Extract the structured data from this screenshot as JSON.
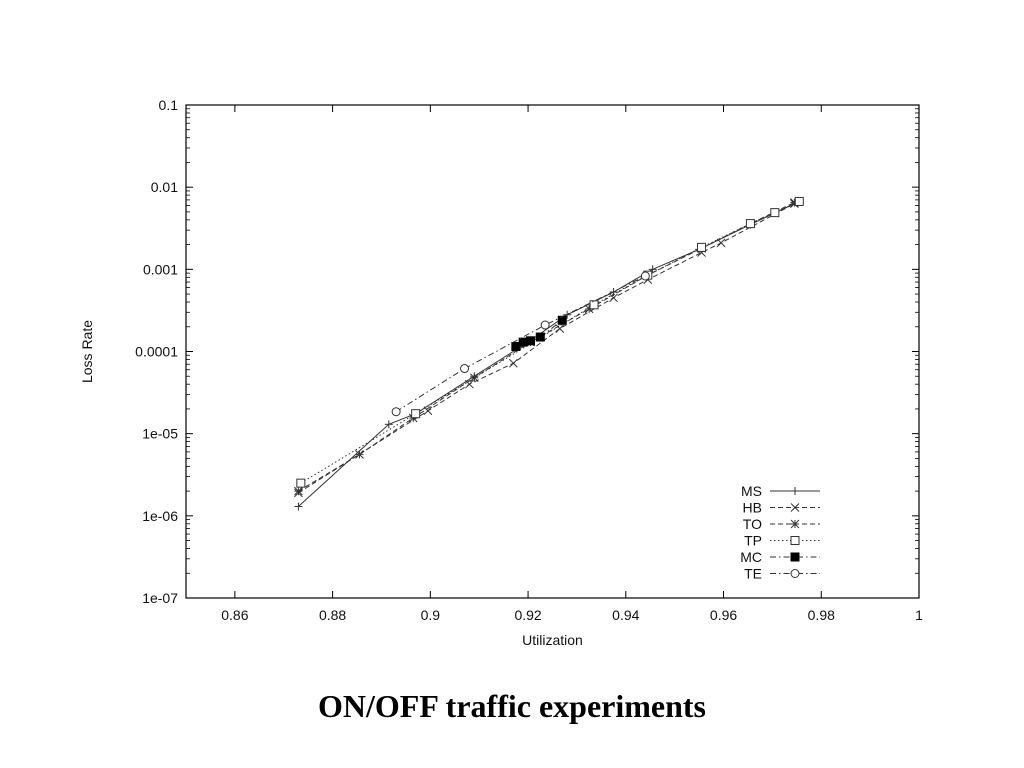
{
  "caption": "ON/OFF traffic experiments",
  "chart_data": {
    "type": "line",
    "title": "",
    "xlabel": "Utilization",
    "ylabel": "Loss Rate",
    "xlim": [
      0.85,
      1.0
    ],
    "ylim": [
      1e-07,
      0.1
    ],
    "yscale": "log",
    "xticks": [
      0.86,
      0.88,
      0.9,
      0.92,
      0.94,
      0.96,
      0.98,
      1.0
    ],
    "xtick_labels": [
      "0.86",
      "0.88",
      "0.9",
      "0.92",
      "0.94",
      "0.96",
      "0.98",
      "1"
    ],
    "yticks": [
      1e-07,
      1e-06,
      1e-05,
      0.0001,
      0.001,
      0.01,
      0.1
    ],
    "ytick_labels": [
      "1e-07",
      "1e-06",
      "1e-05",
      "0.0001",
      "0.001",
      "0.01",
      "0.1"
    ],
    "grid": false,
    "legend_position": "bottom-right",
    "colors": {
      "axis": "#000000",
      "series": "#333333"
    },
    "series": [
      {
        "name": "MS",
        "marker": "plus",
        "dash": "solid",
        "points": [
          [
            0.873,
            1.3e-06
          ],
          [
            0.8915,
            1.3e-05
          ],
          [
            0.897,
            1.75e-05
          ],
          [
            0.909,
            5e-05
          ],
          [
            0.92,
            0.00013
          ],
          [
            0.928,
            0.00028
          ],
          [
            0.9375,
            0.00053
          ],
          [
            0.9455,
            0.001
          ],
          [
            0.955,
            0.00175
          ],
          [
            0.9655,
            0.0035
          ],
          [
            0.975,
            0.0065
          ]
        ]
      },
      {
        "name": "HB",
        "marker": "x",
        "dash": "dashed",
        "points": [
          [
            0.873,
            1.9e-06
          ],
          [
            0.8995,
            1.9e-05
          ],
          [
            0.908,
            4e-05
          ],
          [
            0.917,
            7.2e-05
          ],
          [
            0.9265,
            0.00019
          ],
          [
            0.9375,
            0.00045
          ],
          [
            0.9445,
            0.00075
          ],
          [
            0.9555,
            0.0016
          ],
          [
            0.9595,
            0.0021
          ],
          [
            0.9745,
            0.0063
          ]
        ]
      },
      {
        "name": "TO",
        "marker": "star",
        "dash": "dashed",
        "points": [
          [
            0.873,
            2e-06
          ],
          [
            0.8855,
            5.6e-06
          ],
          [
            0.8965,
            1.55e-05
          ],
          [
            0.909,
            4.8e-05
          ],
          [
            0.9205,
            0.00013
          ],
          [
            0.9325,
            0.00033
          ],
          [
            0.9445,
            0.00085
          ],
          [
            0.9555,
            0.0018
          ],
          [
            0.9655,
            0.0036
          ],
          [
            0.9745,
            0.0065
          ]
        ]
      },
      {
        "name": "TP",
        "marker": "square",
        "dash": "dotted",
        "points": [
          [
            0.8735,
            2.5e-06
          ],
          [
            0.897,
            1.75e-05
          ],
          [
            0.9335,
            0.00037
          ],
          [
            0.9445,
            0.00085
          ],
          [
            0.9555,
            0.00185
          ],
          [
            0.9655,
            0.0036
          ],
          [
            0.9705,
            0.0049
          ],
          [
            0.9755,
            0.0067
          ]
        ]
      },
      {
        "name": "MC",
        "marker": "filled-square",
        "dash": "dash-dot",
        "points": [
          [
            0.9175,
            0.000115
          ],
          [
            0.919,
            0.00013
          ],
          [
            0.9205,
            0.000135
          ],
          [
            0.9225,
            0.00015
          ],
          [
            0.927,
            0.00024
          ]
        ]
      },
      {
        "name": "TE",
        "marker": "circle",
        "dash": "dash-dot",
        "points": [
          [
            0.893,
            1.85e-05
          ],
          [
            0.907,
            6.2e-05
          ],
          [
            0.9235,
            0.00021
          ],
          [
            0.944,
            0.00083
          ]
        ]
      }
    ]
  }
}
